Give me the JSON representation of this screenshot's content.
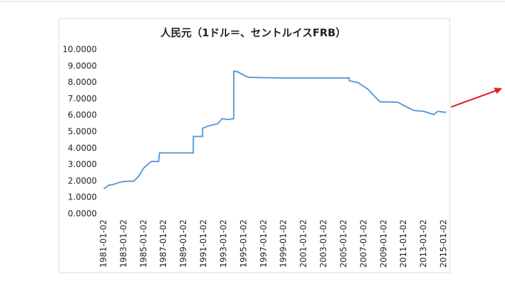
{
  "chart_data": {
    "type": "line",
    "title": "人民元（1ドル＝、セントルイスFRB）",
    "x": [
      "1981-01-02",
      "1981-07-01",
      "1982-01-04",
      "1982-06-01",
      "1983-01-03",
      "1984-01-03",
      "1984-07-02",
      "1985-01-02",
      "1985-10-01",
      "1986-07-01",
      "1986-08-01",
      "1989-12-15",
      "1989-12-18",
      "1990-11-19",
      "1990-11-20",
      "1991-06-03",
      "1992-06-01",
      "1992-11-02",
      "1993-06-01",
      "1993-12-31",
      "1994-01-03",
      "1994-06-01",
      "1995-01-03",
      "1995-07-03",
      "1997-01-02",
      "1999-01-04",
      "2005-07-20",
      "2005-07-21",
      "2006-06-01",
      "2007-06-01",
      "2008-06-02",
      "2008-09-01",
      "2010-06-01",
      "2011-01-03",
      "2012-01-03",
      "2013-01-02",
      "2014-01-02",
      "2014-06-02",
      "2015-01-02",
      "2015-04-01"
    ],
    "series": [
      {
        "color": "#5b9bd5",
        "values": [
          1.53,
          1.75,
          1.8,
          1.9,
          1.98,
          2.0,
          2.3,
          2.8,
          3.2,
          3.2,
          3.72,
          3.72,
          4.72,
          4.72,
          5.22,
          5.35,
          5.5,
          5.8,
          5.75,
          5.8,
          8.7,
          8.65,
          8.45,
          8.32,
          8.3,
          8.28,
          8.28,
          8.11,
          8.0,
          7.6,
          6.95,
          6.83,
          6.8,
          6.6,
          6.3,
          6.25,
          6.05,
          6.25,
          6.2,
          6.2
        ]
      }
    ],
    "xlim": [
      "1981-01-02",
      "2015-04-01"
    ],
    "xticks": [
      "1981-01-02",
      "1983-01-02",
      "1985-01-02",
      "1987-01-02",
      "1989-01-02",
      "1991-01-02",
      "1993-01-02",
      "1995-01-02",
      "1997-01-02",
      "1999-01-02",
      "2001-01-02",
      "2003-01-02",
      "2005-01-02",
      "2007-01-02",
      "2009-01-02",
      "2011-01-02",
      "2013-01-02",
      "2015-01-02"
    ],
    "ylim": [
      0,
      10
    ],
    "yticks": [
      {
        "value": 0,
        "label": "0.0000"
      },
      {
        "value": 1,
        "label": "1.0000"
      },
      {
        "value": 2,
        "label": "2.0000"
      },
      {
        "value": 3,
        "label": "3.0000"
      },
      {
        "value": 4,
        "label": "4.0000"
      },
      {
        "value": 5,
        "label": "5.0000"
      },
      {
        "value": 6,
        "label": "6.0000"
      },
      {
        "value": 7,
        "label": "7.0000"
      },
      {
        "value": 8,
        "label": "8.0000"
      },
      {
        "value": 9,
        "label": "9.0000"
      },
      {
        "value": 10,
        "label": "10.0000"
      }
    ],
    "grid": false
  }
}
